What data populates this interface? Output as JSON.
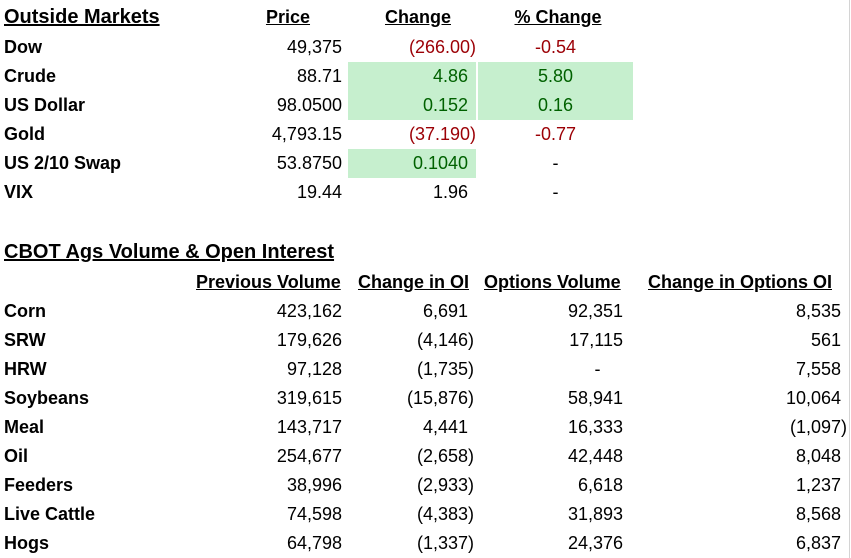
{
  "outside_markets": {
    "title": "Outside Markets",
    "headers": {
      "price": "Price",
      "change": "Change",
      "pct_change": "% Change"
    },
    "rows": [
      {
        "name": "Dow",
        "price": "49,375",
        "change": "(266.00)",
        "pct": "-0.54"
      },
      {
        "name": "Crude",
        "price": "88.71",
        "change": "4.86",
        "pct": "5.80"
      },
      {
        "name": "US Dollar",
        "price": "98.0500",
        "change": "0.152",
        "pct": "0.16"
      },
      {
        "name": "Gold",
        "price": "4,793.15",
        "change": "(37.190)",
        "pct": "-0.77"
      },
      {
        "name": "US 2/10 Swap",
        "price": "53.8750",
        "change": "0.1040",
        "pct": "-"
      },
      {
        "name": "VIX",
        "price": "19.44",
        "change": "1.96",
        "pct": "-"
      }
    ]
  },
  "cbot": {
    "title": "CBOT Ags Volume & Open Interest",
    "headers": {
      "prev_volume": "Previous Volume",
      "change_oi": "Change in OI",
      "options_volume": "Options Volume",
      "change_options_oi": "Change in Options OI"
    },
    "rows": [
      {
        "name": "Corn",
        "prev": "423,162",
        "oi": "6,691",
        "opt": "92,351",
        "optoi": "8,535"
      },
      {
        "name": "SRW",
        "prev": "179,626",
        "oi": "(4,146)",
        "opt": "17,115",
        "optoi": "561"
      },
      {
        "name": "HRW",
        "prev": "97,128",
        "oi": "(1,735)",
        "opt": "-",
        "optoi": "7,558"
      },
      {
        "name": "Soybeans",
        "prev": "319,615",
        "oi": "(15,876)",
        "opt": "58,941",
        "optoi": "10,064"
      },
      {
        "name": "Meal",
        "prev": "143,717",
        "oi": "4,441",
        "opt": "16,333",
        "optoi": "(1,097)"
      },
      {
        "name": "Oil",
        "prev": "254,677",
        "oi": "(2,658)",
        "opt": "42,448",
        "optoi": "8,048"
      },
      {
        "name": "Feeders",
        "prev": "38,996",
        "oi": "(2,933)",
        "opt": "6,618",
        "optoi": "1,237"
      },
      {
        "name": "Live Cattle",
        "prev": "74,598",
        "oi": "(4,383)",
        "opt": "31,893",
        "optoi": "8,568"
      },
      {
        "name": "Hogs",
        "prev": "64,798",
        "oi": "(1,337)",
        "opt": "24,376",
        "optoi": "6,837"
      }
    ]
  },
  "colors": {
    "negative_text": "#9c0006",
    "positive_text": "#006100",
    "positive_fill": "#c6efce"
  }
}
